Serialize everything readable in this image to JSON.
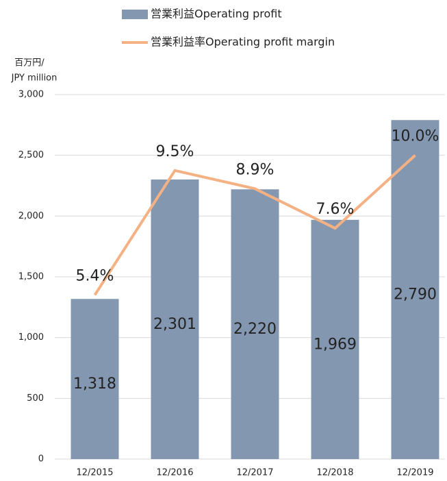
{
  "chart_data": {
    "type": "bar_line",
    "ylabel": [
      "百万円/",
      "JPY million"
    ],
    "categories": [
      "12/2015",
      "12/2016",
      "12/2017",
      "12/2018",
      "12/2019"
    ],
    "series": [
      {
        "name": "営業利益Operating profit",
        "type": "bar",
        "color": "#8497b0",
        "values": [
          1318,
          2301,
          2220,
          1969,
          2790
        ],
        "value_labels": [
          "1,318",
          "2,301",
          "2,220",
          "1,969",
          "2,790"
        ]
      },
      {
        "name": "営業利益率Operating profit margin",
        "type": "line",
        "axis": "y2",
        "color": "#f4b183",
        "values": [
          5.4,
          9.5,
          8.9,
          7.6,
          10.0
        ],
        "value_labels": [
          "5.4%",
          "9.5%",
          "8.9%",
          "7.6%",
          "10.0%"
        ]
      }
    ],
    "ylim": [
      0,
      3000
    ],
    "yticks": [
      0,
      500,
      {
        "value": 1000,
        "label": "1,000"
      },
      {
        "value": 1500,
        "label": "1,500"
      },
      {
        "value": 2000,
        "label": "2,000"
      },
      {
        "value": 2500,
        "label": "2,500"
      },
      {
        "value": 3000,
        "label": "3,000"
      }
    ],
    "y2lim": [
      0,
      12
    ],
    "grid": true
  }
}
